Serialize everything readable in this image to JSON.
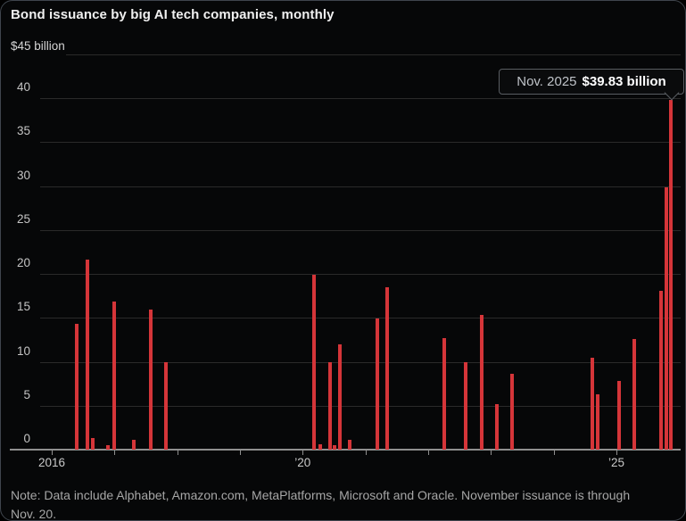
{
  "header": {
    "title": "Bond issuance by big AI tech companies, monthly"
  },
  "chart_data": {
    "type": "bar",
    "title": "Bond issuance by big AI tech companies, monthly",
    "ylabel": "$45 billion",
    "xlabel": "",
    "ylim": [
      0,
      45
    ],
    "grid": true,
    "legend": "none",
    "bar_color": "#d53539",
    "y_ticks": [
      0,
      5,
      10,
      15,
      20,
      25,
      30,
      35,
      40,
      45
    ],
    "y_top_tick_label": "$45 billion",
    "x_ticks": [
      {
        "year": 2016,
        "label": "2016"
      },
      {
        "year": 2017,
        "label": ""
      },
      {
        "year": 2018,
        "label": ""
      },
      {
        "year": 2019,
        "label": ""
      },
      {
        "year": 2020,
        "label": "’20"
      },
      {
        "year": 2021,
        "label": ""
      },
      {
        "year": 2022,
        "label": ""
      },
      {
        "year": 2023,
        "label": ""
      },
      {
        "year": 2024,
        "label": ""
      },
      {
        "year": 2025,
        "label": "’25"
      }
    ],
    "bars": [
      {
        "approx_date": "Jun 2016",
        "x": 2016.4,
        "value": 14.3
      },
      {
        "approx_date": "Aug 2016",
        "x": 2016.57,
        "value": 21.6
      },
      {
        "approx_date": "Sep 2016",
        "x": 2016.65,
        "value": 1.3
      },
      {
        "approx_date": "Dec 2016",
        "x": 2016.9,
        "value": 0.5
      },
      {
        "approx_date": "Jan 2017",
        "x": 2017.0,
        "value": 16.9
      },
      {
        "approx_date": "Apr 2017",
        "x": 2017.31,
        "value": 1.1
      },
      {
        "approx_date": "Aug 2017",
        "x": 2017.58,
        "value": 15.9
      },
      {
        "approx_date": "Nov 2017",
        "x": 2017.82,
        "value": 10.0
      },
      {
        "approx_date": "Mar 2020",
        "x": 2020.18,
        "value": 19.9
      },
      {
        "approx_date": "Apr 2020",
        "x": 2020.28,
        "value": 0.6
      },
      {
        "approx_date": "Jun 2020",
        "x": 2020.43,
        "value": 10.0
      },
      {
        "approx_date": "Jul 2020",
        "x": 2020.51,
        "value": 0.5
      },
      {
        "approx_date": "Aug 2020",
        "x": 2020.59,
        "value": 12.0
      },
      {
        "approx_date": "Oct 2020",
        "x": 2020.75,
        "value": 1.1
      },
      {
        "approx_date": "Mar 2021",
        "x": 2021.19,
        "value": 14.9
      },
      {
        "approx_date": "May 2021",
        "x": 2021.34,
        "value": 18.5
      },
      {
        "approx_date": "Apr 2022",
        "x": 2022.26,
        "value": 12.7
      },
      {
        "approx_date": "Aug 2022",
        "x": 2022.6,
        "value": 10.0
      },
      {
        "approx_date": "Nov 2022",
        "x": 2022.85,
        "value": 15.3
      },
      {
        "approx_date": "Feb 2023",
        "x": 2023.1,
        "value": 5.2
      },
      {
        "approx_date": "May 2023",
        "x": 2023.34,
        "value": 8.6
      },
      {
        "approx_date": "Aug 2024",
        "x": 2024.61,
        "value": 10.5
      },
      {
        "approx_date": "Sep 2024",
        "x": 2024.7,
        "value": 6.3
      },
      {
        "approx_date": "Jan 2025",
        "x": 2025.05,
        "value": 7.8
      },
      {
        "approx_date": "Apr 2025",
        "x": 2025.29,
        "value": 12.6
      },
      {
        "approx_date": "Sep 2025",
        "x": 2025.71,
        "value": 18.1
      },
      {
        "approx_date": "Oct 2025",
        "x": 2025.79,
        "value": 29.9
      },
      {
        "approx_date": "Nov 2025",
        "x": 2025.87,
        "value": 39.83
      }
    ],
    "tooltip": {
      "date_label": "Nov. 2025",
      "value_label": "$39.83 billion"
    }
  },
  "note": {
    "text": "Note: Data include Alphabet, Amazon.com, MetaPlatforms, Microsoft and Oracle. November issuance is through Nov. 20."
  }
}
